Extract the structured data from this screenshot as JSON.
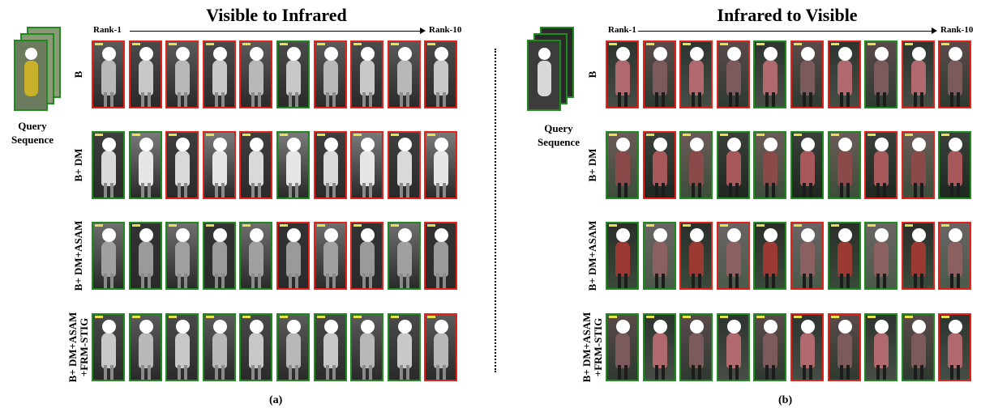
{
  "panels": [
    {
      "id": "a",
      "title": "Visible to Infrared",
      "rank_start": "Rank-1",
      "rank_end": "Rank-10",
      "query_label": [
        "Query",
        "Sequence"
      ],
      "caption": "(a)",
      "modality": "infrared",
      "rows": [
        {
          "label": [
            "B"
          ],
          "matches": [
            "r",
            "r",
            "r",
            "r",
            "r",
            "g",
            "r",
            "r",
            "r",
            "r"
          ]
        },
        {
          "label": [
            "B+ DM"
          ],
          "matches": [
            "g",
            "g",
            "r",
            "r",
            "r",
            "g",
            "r",
            "r",
            "r",
            "r"
          ]
        },
        {
          "label": [
            "B+ DM+ASAM"
          ],
          "matches": [
            "g",
            "g",
            "g",
            "g",
            "g",
            "r",
            "r",
            "r",
            "g",
            "r"
          ]
        },
        {
          "label": [
            "B+ DM+ASAM",
            "+FRM-STIG"
          ],
          "matches": [
            "g",
            "g",
            "g",
            "g",
            "g",
            "g",
            "g",
            "g",
            "g",
            "r"
          ]
        }
      ]
    },
    {
      "id": "b",
      "title": "Infrared to Visible",
      "rank_start": "Rank-1",
      "rank_end": "Rank-10",
      "query_label": [
        "Query",
        "Sequence"
      ],
      "caption": "(b)",
      "modality": "visible",
      "rows": [
        {
          "label": [
            "B"
          ],
          "matches": [
            "r",
            "r",
            "r",
            "r",
            "g",
            "r",
            "r",
            "g",
            "r",
            "r"
          ]
        },
        {
          "label": [
            "B+ DM"
          ],
          "matches": [
            "g",
            "r",
            "g",
            "g",
            "g",
            "g",
            "g",
            "r",
            "r",
            "g"
          ]
        },
        {
          "label": [
            "B+ DM+ASAM"
          ],
          "matches": [
            "g",
            "g",
            "r",
            "r",
            "g",
            "r",
            "g",
            "g",
            "r",
            "r"
          ]
        },
        {
          "label": [
            "B+ DM+ASAM",
            "+FRM-STIG"
          ],
          "matches": [
            "g",
            "g",
            "g",
            "g",
            "g",
            "r",
            "r",
            "g",
            "g",
            "r"
          ]
        }
      ]
    }
  ],
  "colors": {
    "match": "#1f8a1f",
    "mismatch": "#e0241c"
  }
}
